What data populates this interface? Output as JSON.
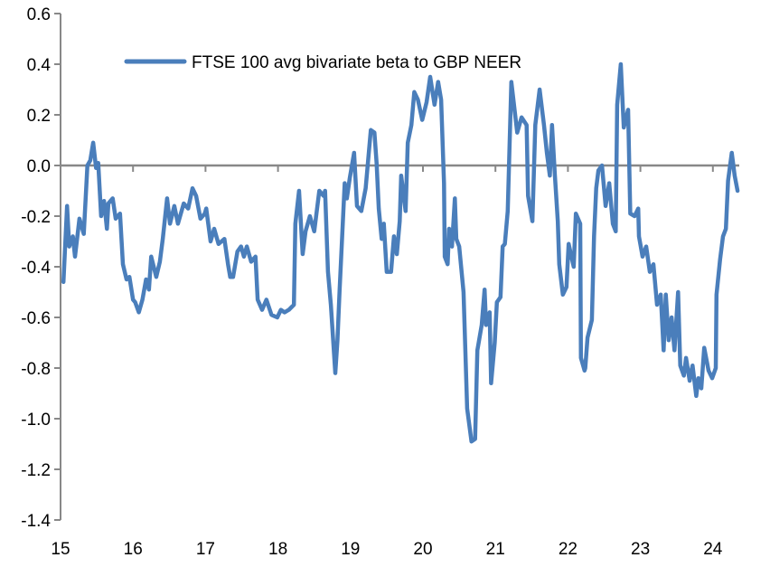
{
  "chart_data": {
    "type": "line",
    "title": "",
    "xlabel": "",
    "ylabel": "",
    "xlim": [
      15,
      24.4
    ],
    "ylim": [
      -1.4,
      0.6
    ],
    "x_ticks": [
      "15",
      "16",
      "17",
      "18",
      "19",
      "20",
      "21",
      "22",
      "23",
      "24"
    ],
    "y_ticks": [
      "0.6",
      "0.4",
      "0.2",
      "0.0",
      "-0.2",
      "-0.4",
      "-0.6",
      "-0.8",
      "-1.0",
      "-1.2",
      "-1.4"
    ],
    "grid": false,
    "legend_position": "top-left",
    "series": [
      {
        "name": "FTSE 100 avg bivariate beta to GBP NEER",
        "color": "#4a7ebb",
        "x": [
          15.04,
          15.09,
          15.12,
          15.17,
          15.2,
          15.26,
          15.32,
          15.37,
          15.41,
          15.45,
          15.49,
          15.52,
          15.56,
          15.6,
          15.64,
          15.66,
          15.72,
          15.76,
          15.82,
          15.86,
          15.91,
          15.95,
          16.0,
          16.03,
          16.08,
          16.13,
          16.18,
          16.22,
          16.25,
          16.32,
          16.37,
          16.41,
          16.47,
          16.51,
          16.57,
          16.62,
          16.7,
          16.76,
          16.82,
          16.87,
          16.93,
          16.99,
          17.01,
          17.07,
          17.12,
          17.18,
          17.26,
          17.31,
          17.34,
          17.38,
          17.44,
          17.49,
          17.53,
          17.57,
          17.63,
          17.69,
          17.72,
          17.78,
          17.84,
          17.91,
          17.99,
          18.04,
          18.09,
          18.15,
          18.22,
          18.24,
          18.29,
          18.34,
          18.38,
          18.44,
          18.5,
          18.57,
          18.63,
          18.65,
          18.69,
          18.73,
          18.79,
          18.82,
          18.85,
          18.92,
          18.95,
          18.99,
          19.05,
          19.09,
          19.15,
          19.21,
          19.28,
          19.33,
          19.36,
          19.39,
          19.43,
          19.46,
          19.5,
          19.56,
          19.6,
          19.64,
          19.68,
          19.7,
          19.76,
          19.79,
          19.84,
          19.88,
          19.93,
          19.99,
          20.05,
          20.1,
          20.16,
          20.21,
          20.25,
          20.29,
          20.3,
          20.34,
          20.36,
          20.4,
          20.44,
          20.46,
          20.5,
          20.56,
          20.61,
          20.67,
          20.72,
          20.75,
          20.81,
          20.85,
          20.87,
          20.92,
          20.94,
          20.99,
          21.02,
          21.07,
          21.1,
          21.13,
          21.17,
          21.22,
          21.3,
          21.36,
          21.43,
          21.45,
          21.51,
          21.55,
          21.61,
          21.67,
          21.71,
          21.75,
          21.78,
          21.82,
          21.86,
          21.88,
          21.93,
          21.98,
          22.01,
          22.08,
          22.11,
          22.17,
          22.18,
          22.23,
          22.24,
          22.27,
          22.33,
          22.36,
          22.39,
          22.42,
          22.47,
          22.52,
          22.57,
          22.62,
          22.66,
          22.68,
          22.73,
          22.77,
          22.83,
          22.86,
          22.92,
          22.97,
          22.98,
          23.03,
          23.08,
          23.13,
          23.18,
          23.23,
          23.28,
          23.32,
          23.35,
          23.39,
          23.43,
          23.47,
          23.52,
          23.55,
          23.6,
          23.63,
          23.68,
          23.72,
          23.77,
          23.8,
          23.84,
          23.88,
          23.94,
          23.99,
          24.04,
          24.05,
          24.1,
          24.14,
          24.18,
          24.21,
          24.26,
          24.3,
          24.34
        ],
        "y": [
          -0.46,
          -0.16,
          -0.32,
          -0.28,
          -0.36,
          -0.21,
          -0.27,
          0.0,
          0.02,
          0.09,
          -0.01,
          0.01,
          -0.2,
          -0.14,
          -0.25,
          -0.15,
          -0.13,
          -0.21,
          -0.19,
          -0.39,
          -0.45,
          -0.44,
          -0.53,
          -0.54,
          -0.58,
          -0.53,
          -0.45,
          -0.49,
          -0.36,
          -0.44,
          -0.38,
          -0.29,
          -0.13,
          -0.23,
          -0.16,
          -0.23,
          -0.15,
          -0.17,
          -0.09,
          -0.12,
          -0.21,
          -0.19,
          -0.17,
          -0.3,
          -0.25,
          -0.31,
          -0.29,
          -0.39,
          -0.44,
          -0.44,
          -0.34,
          -0.32,
          -0.36,
          -0.32,
          -0.38,
          -0.36,
          -0.53,
          -0.57,
          -0.53,
          -0.59,
          -0.6,
          -0.57,
          -0.58,
          -0.57,
          -0.55,
          -0.23,
          -0.1,
          -0.35,
          -0.26,
          -0.2,
          -0.26,
          -0.1,
          -0.12,
          -0.1,
          -0.42,
          -0.55,
          -0.82,
          -0.69,
          -0.49,
          -0.07,
          -0.13,
          -0.05,
          0.05,
          -0.16,
          -0.18,
          -0.09,
          0.14,
          0.13,
          0.01,
          -0.17,
          -0.29,
          -0.23,
          -0.42,
          -0.42,
          -0.28,
          -0.35,
          -0.22,
          -0.04,
          -0.18,
          0.09,
          0.16,
          0.29,
          0.26,
          0.18,
          0.25,
          0.35,
          0.24,
          0.33,
          0.26,
          -0.07,
          -0.36,
          -0.39,
          -0.25,
          -0.32,
          -0.13,
          -0.29,
          -0.32,
          -0.5,
          -0.96,
          -1.09,
          -1.08,
          -0.73,
          -0.63,
          -0.49,
          -0.63,
          -0.58,
          -0.86,
          -0.7,
          -0.54,
          -0.52,
          -0.32,
          -0.31,
          -0.18,
          0.33,
          0.13,
          0.19,
          0.16,
          -0.12,
          -0.22,
          0.16,
          0.3,
          0.16,
          0.05,
          -0.04,
          0.16,
          -0.04,
          -0.22,
          -0.39,
          -0.51,
          -0.48,
          -0.31,
          -0.4,
          -0.19,
          -0.23,
          -0.76,
          -0.81,
          -0.8,
          -0.68,
          -0.61,
          -0.28,
          -0.09,
          -0.02,
          0.0,
          -0.16,
          -0.07,
          -0.23,
          -0.26,
          0.24,
          0.4,
          0.15,
          0.22,
          -0.19,
          -0.2,
          -0.17,
          -0.28,
          -0.36,
          -0.32,
          -0.42,
          -0.39,
          -0.55,
          -0.51,
          -0.73,
          -0.51,
          -0.69,
          -0.6,
          -0.73,
          -0.5,
          -0.79,
          -0.83,
          -0.76,
          -0.85,
          -0.79,
          -0.91,
          -0.84,
          -0.88,
          -0.72,
          -0.81,
          -0.84,
          -0.8,
          -0.51,
          -0.37,
          -0.28,
          -0.25,
          -0.06,
          0.05,
          -0.04,
          -0.1
        ]
      }
    ]
  }
}
